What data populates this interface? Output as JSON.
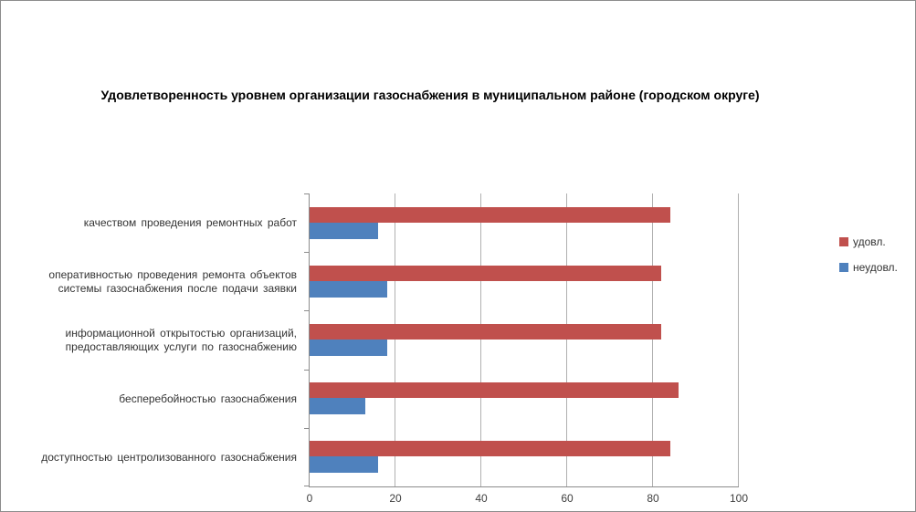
{
  "window": {
    "background": "#FFFFFF",
    "border_color": "#8C8C8C"
  },
  "chart_data": {
    "type": "bar",
    "orientation": "horizontal",
    "title": "Удовлетворенность уровнем организации газоснабжения в муниципальном районе (городском округе)",
    "categories": [
      "качеством проведения ремонтных работ",
      "оперативностью проведения ремонта объектов системы газоснабжения после подачи заявки",
      "информационной открытостью организаций, предоставляющих услуги по газоснабжению",
      "бесперебойностью газоснабжения",
      "доступностью центролизованного газоснабжения"
    ],
    "category_lines": [
      [
        "качеством проведения ремонтных работ"
      ],
      [
        "оперативностью проведения ремонта объектов",
        "системы газоснабжения после подачи заявки"
      ],
      [
        "информационной открытостью организаций,",
        "предоставляющих услуги по газоснабжению"
      ],
      [
        "бесперебойностью газоснабжения"
      ],
      [
        "доступностью центролизованного газоснабжения"
      ]
    ],
    "series": [
      {
        "name": "удовл.",
        "color": "#C0504D",
        "values": [
          84,
          82,
          82,
          86,
          84
        ]
      },
      {
        "name": "неудовл.",
        "color": "#4F81BD",
        "values": [
          16,
          18,
          18,
          13,
          16
        ]
      }
    ],
    "xlabel": "",
    "ylabel": "",
    "xlim": [
      0,
      100
    ],
    "xticks": [
      0,
      20,
      40,
      60,
      80,
      100
    ],
    "grid": true,
    "gridline_color": "#B0B0B0",
    "axis_color": "#8C8C8C",
    "legend_position": "right"
  }
}
